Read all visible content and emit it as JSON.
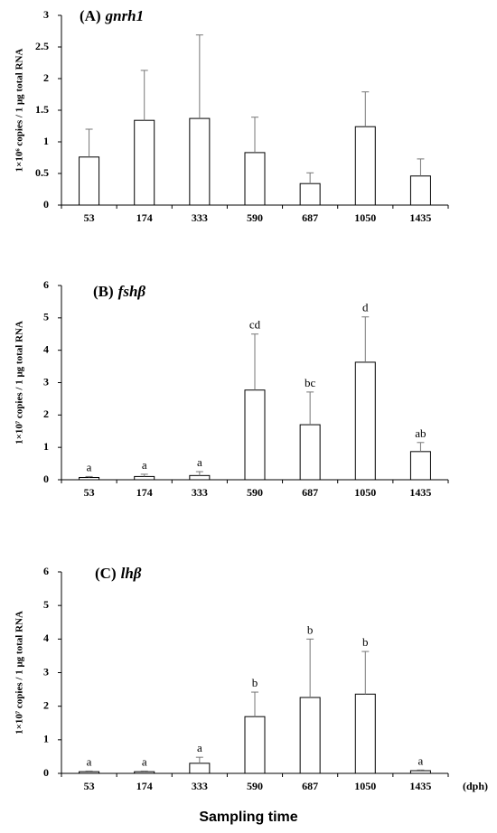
{
  "xlabel": "Sampling time",
  "chart_data": [
    {
      "type": "bar",
      "panel_label": "(A)",
      "title": "gnrh1",
      "ylabel": "1×10⁶ copies / 1 μg total RNA",
      "categories": [
        "53",
        "174",
        "333",
        "590",
        "687",
        "1050",
        "1435"
      ],
      "values": [
        0.76,
        1.34,
        1.37,
        0.83,
        0.34,
        1.24,
        0.46
      ],
      "errors": [
        0.44,
        0.79,
        1.32,
        0.56,
        0.17,
        0.55,
        0.27
      ],
      "ylim": [
        0,
        3
      ],
      "yticks": [
        0,
        0.5,
        1,
        1.5,
        2,
        2.5,
        3
      ],
      "color": "#ffffff"
    },
    {
      "type": "bar",
      "panel_label": "(B)",
      "title": "fshβ",
      "ylabel": "1×10⁷ copies / 1 μg total RNA",
      "categories": [
        "53",
        "174",
        "333",
        "590",
        "687",
        "1050",
        "1435"
      ],
      "values": [
        0.07,
        0.1,
        0.13,
        2.77,
        1.7,
        3.63,
        0.87
      ],
      "errors": [
        0.03,
        0.07,
        0.12,
        1.73,
        1.01,
        1.4,
        0.28
      ],
      "annotations": [
        "a",
        "a",
        "a",
        "cd",
        "bc",
        "d",
        "ab"
      ],
      "ylim": [
        0,
        6
      ],
      "yticks": [
        0,
        1,
        2,
        3,
        4,
        5,
        6
      ],
      "color": "#ffffff"
    },
    {
      "type": "bar",
      "panel_label": "(C)",
      "title": "lhβ",
      "ylabel": "1×10⁷ copies / 1 μg total RNA",
      "x_unit": "(dph)",
      "categories": [
        "53",
        "174",
        "333",
        "590",
        "687",
        "1050",
        "1435"
      ],
      "values": [
        0.05,
        0.05,
        0.3,
        1.69,
        2.26,
        2.36,
        0.08
      ],
      "errors": [
        0.02,
        0.02,
        0.18,
        0.73,
        1.74,
        1.27,
        0.02
      ],
      "annotations": [
        "a",
        "a",
        "a",
        "b",
        "b",
        "b",
        "a"
      ],
      "ylim": [
        0,
        6
      ],
      "yticks": [
        0,
        1,
        2,
        3,
        4,
        5,
        6
      ],
      "color": "#ffffff"
    }
  ]
}
